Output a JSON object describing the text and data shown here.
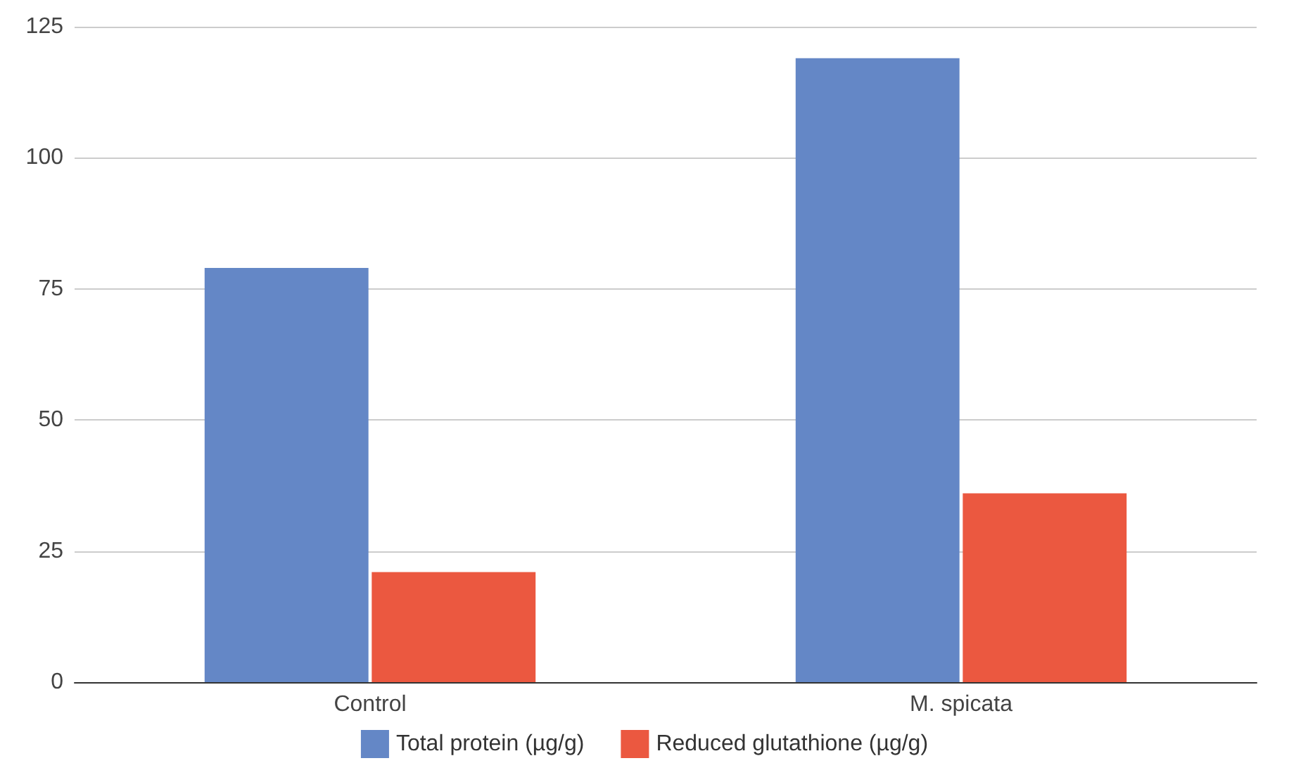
{
  "chart_data": {
    "type": "bar",
    "categories": [
      "Control",
      "M. spicata"
    ],
    "series": [
      {
        "name": "Total protein (µg/g)",
        "color": "#6487c6",
        "values": [
          79,
          119
        ]
      },
      {
        "name": "Reduced glutathione (µg/g)",
        "color": "#eb5840",
        "values": [
          21,
          36
        ]
      }
    ],
    "ylim": [
      0,
      125
    ],
    "yticks": [
      0,
      25,
      50,
      75,
      100,
      125
    ],
    "grid": "y",
    "legend": "bottom"
  }
}
